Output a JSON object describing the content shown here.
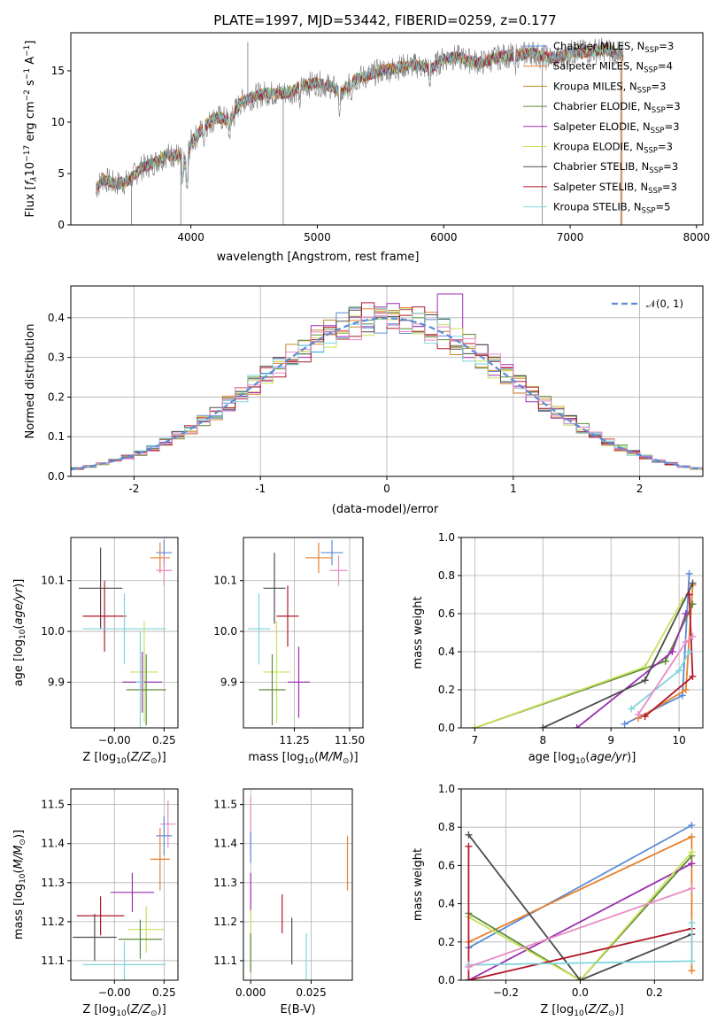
{
  "figure_title": "PLATE=1997, MJD=53442, FIBERID=0259, z=0.177",
  "colors": {
    "Chabrier MILES": "#5b8bd8",
    "Salpeter MILES": "#e87f2a",
    "Kroupa MILES": "#c48a2a",
    "Chabrier ELODIE": "#5c8a3a",
    "Salpeter ELODIE": "#9b2fb0",
    "Kroupa ELODIE": "#c9e05a",
    "Chabrier STELIB": "#4d4d4d",
    "Salpeter STELIB": "#b2182b",
    "Kroupa STELIB": "#7fd6dc",
    "gaussian": "#5b8bd8",
    "extra_pink": "#e88bc4"
  },
  "chart_data": [
    {
      "id": "spectrum",
      "type": "line",
      "xlabel": "wavelength [Angstrom, rest frame]",
      "ylabel": "Flux [f_λ10^-17 erg cm^-2 s^-1 A^-1]",
      "ylabel_parts": {
        "a": "Flux [",
        "b": "f",
        "c": "λ",
        "d": "10",
        "e": "−17",
        "f": " erg cm",
        "g": "−2",
        "h": " s",
        "i": "−1",
        "j": " A",
        "k": "−1",
        "l": "]"
      },
      "xlim": [
        3050,
        8050
      ],
      "ylim": [
        0,
        18.7
      ],
      "xticks": [
        4000,
        5000,
        6000,
        7000,
        8000
      ],
      "yticks": [
        0,
        5,
        10,
        15
      ],
      "grid": false,
      "legend_placement": "right",
      "legend": [
        {
          "name": "Chabrier MILES",
          "n": "3"
        },
        {
          "name": "Salpeter MILES",
          "n": "4"
        },
        {
          "name": "Kroupa MILES",
          "n": "3"
        },
        {
          "name": "Chabrier ELODIE",
          "n": "3"
        },
        {
          "name": "Salpeter ELODIE",
          "n": "3"
        },
        {
          "name": "Kroupa ELODIE",
          "n": "3"
        },
        {
          "name": "Chabrier STELIB",
          "n": "3"
        },
        {
          "name": "Salpeter STELIB",
          "n": "3"
        },
        {
          "name": "Kroupa STELIB",
          "n": "5"
        }
      ],
      "legend_suffix": {
        "n": "N",
        "sub": "SSP",
        "eq": "="
      },
      "continuum": [
        [
          3250,
          3.5
        ],
        [
          3300,
          4.5
        ],
        [
          3400,
          4.0
        ],
        [
          3500,
          4.2
        ],
        [
          3600,
          5.5
        ],
        [
          3700,
          6.0
        ],
        [
          3800,
          6.8
        ],
        [
          3900,
          6.8
        ],
        [
          3950,
          5.8
        ],
        [
          4000,
          8.0
        ],
        [
          4100,
          9.5
        ],
        [
          4200,
          10.5
        ],
        [
          4300,
          10.2
        ],
        [
          4400,
          12.0
        ],
        [
          4500,
          12.5
        ],
        [
          4600,
          12.8
        ],
        [
          4700,
          12.8
        ],
        [
          4800,
          13.0
        ],
        [
          4900,
          13.6
        ],
        [
          5000,
          13.8
        ],
        [
          5100,
          13.5
        ],
        [
          5200,
          12.8
        ],
        [
          5300,
          14.2
        ],
        [
          5400,
          14.5
        ],
        [
          5500,
          15.0
        ],
        [
          5600,
          15.2
        ],
        [
          5700,
          15.5
        ],
        [
          5800,
          15.5
        ],
        [
          5900,
          15.2
        ],
        [
          6000,
          16.2
        ],
        [
          6100,
          16.3
        ],
        [
          6200,
          16.0
        ],
        [
          6300,
          15.8
        ],
        [
          6400,
          16.2
        ],
        [
          6500,
          16.5
        ],
        [
          6600,
          16.5
        ],
        [
          6700,
          16.8
        ],
        [
          6800,
          16.3
        ],
        [
          6900,
          16.2
        ],
        [
          7000,
          16.8
        ],
        [
          7100,
          16.8
        ],
        [
          7200,
          17.0
        ],
        [
          7300,
          17.0
        ],
        [
          7400,
          16.5
        ]
      ],
      "absorption": [
        [
          3934,
          3.5
        ],
        [
          3969,
          3.0
        ],
        [
          4102,
          7.5
        ],
        [
          4304,
          8.0
        ],
        [
          4340,
          9.5
        ],
        [
          4861,
          11.0
        ],
        [
          5175,
          10.5
        ],
        [
          5270,
          12.0
        ],
        [
          5890,
          13.0
        ],
        [
          6563,
          14.5
        ]
      ],
      "spikes": [
        [
          3530,
          0
        ],
        [
          3920,
          0
        ],
        [
          4450,
          17.8
        ],
        [
          4730,
          0
        ],
        [
          6780,
          0
        ],
        [
          7400,
          0
        ]
      ]
    },
    {
      "id": "residual_histogram",
      "type": "step",
      "xlabel": "(data-model)/error",
      "ylabel": "Normed distribution",
      "xlim": [
        -2.5,
        2.5
      ],
      "ylim": [
        0,
        0.48
      ],
      "xticks": [
        -2,
        -1,
        0,
        1,
        2
      ],
      "ytick_labels": [
        "0.0",
        "0.1",
        "0.2",
        "0.3",
        "0.4"
      ],
      "yticks": [
        0,
        0.1,
        0.2,
        0.3,
        0.4
      ],
      "grid": true,
      "legend_placement": "top-right",
      "legend_label": "𝒩(0, 1)",
      "bin_width": 0.1,
      "gaussian": {
        "mean": 0,
        "sigma": 1
      }
    },
    {
      "id": "age_vs_Z",
      "type": "errorbar",
      "xlabel": "Z [log10(Z/Z⊙)]",
      "ylabel": "age [log10(age/yr)]",
      "xlim": [
        -0.22,
        0.32
      ],
      "ylim": [
        9.81,
        10.185
      ],
      "xticks": [
        -0.0,
        0.25
      ],
      "xtick_labels": [
        "−0.00",
        "0.25"
      ],
      "yticks": [
        9.9,
        10.0,
        10.1
      ],
      "ytick_labels": [
        "9.9",
        "10.0",
        "10.1"
      ],
      "grid": true,
      "points": [
        {
          "series": "Chabrier MILES",
          "x": 0.25,
          "y": 10.155,
          "xerr": 0.04,
          "yerr": 0.025
        },
        {
          "series": "Salpeter MILES",
          "x": 0.23,
          "y": 10.145,
          "xerr": 0.05,
          "yerr": 0.03
        },
        {
          "series": "extra_pink",
          "x": 0.25,
          "y": 10.12,
          "xerr": 0.04,
          "yerr": 0.03
        },
        {
          "series": "Chabrier STELIB",
          "x": -0.07,
          "y": 10.085,
          "xerr": 0.11,
          "yerr": 0.08
        },
        {
          "series": "Salpeter STELIB",
          "x": -0.05,
          "y": 10.03,
          "xerr": 0.11,
          "yerr": 0.07
        },
        {
          "series": "Kroupa STELIB",
          "x": 0.05,
          "y": 10.005,
          "xerr": 0.21,
          "yerr": 0.07
        },
        {
          "series": "Kroupa ELODIE",
          "x": 0.15,
          "y": 9.92,
          "xerr": 0.07,
          "yerr": 0.1
        },
        {
          "series": "Salpeter ELODIE",
          "x": 0.14,
          "y": 9.9,
          "xerr": 0.1,
          "yerr": 0.06
        },
        {
          "series": "Chabrier ELODIE",
          "x": 0.16,
          "y": 9.885,
          "xerr": 0.1,
          "yerr": 0.07
        },
        {
          "series": "Kroupa STELIB",
          "x": 0.13,
          "y": 9.9,
          "xerr": 0.02,
          "yerr": 0.1
        }
      ]
    },
    {
      "id": "age_vs_mass",
      "type": "errorbar",
      "xlabel": "mass [log10(M/M⊙)]",
      "ylabel": "",
      "xlim": [
        11.02,
        11.56
      ],
      "ylim": [
        9.81,
        10.185
      ],
      "xticks": [
        11.25,
        11.5
      ],
      "xtick_labels": [
        "11.25",
        "11.50"
      ],
      "yticks": [
        9.9,
        10.0,
        10.1
      ],
      "ytick_labels": [
        "9.9",
        "10.0",
        "10.1"
      ],
      "grid": true,
      "points": [
        {
          "series": "Chabrier MILES",
          "x": 11.42,
          "y": 10.155,
          "xerr": 0.05,
          "yerr": 0.025
        },
        {
          "series": "Salpeter MILES",
          "x": 11.36,
          "y": 10.145,
          "xerr": 0.06,
          "yerr": 0.03
        },
        {
          "series": "extra_pink",
          "x": 11.45,
          "y": 10.12,
          "xerr": 0.04,
          "yerr": 0.03
        },
        {
          "series": "Chabrier STELIB",
          "x": 11.16,
          "y": 10.085,
          "xerr": 0.05,
          "yerr": 0.07
        },
        {
          "series": "Salpeter STELIB",
          "x": 11.22,
          "y": 10.03,
          "xerr": 0.05,
          "yerr": 0.06
        },
        {
          "series": "Kroupa STELIB",
          "x": 11.09,
          "y": 10.005,
          "xerr": 0.05,
          "yerr": 0.07
        },
        {
          "series": "Kroupa ELODIE",
          "x": 11.17,
          "y": 9.92,
          "xerr": 0.06,
          "yerr": 0.1
        },
        {
          "series": "Salpeter ELODIE",
          "x": 11.27,
          "y": 9.9,
          "xerr": 0.05,
          "yerr": 0.07
        },
        {
          "series": "Chabrier ELODIE",
          "x": 11.15,
          "y": 9.885,
          "xerr": 0.06,
          "yerr": 0.07
        }
      ]
    },
    {
      "id": "mass_weight_vs_age",
      "type": "line",
      "xlabel": "age [log10(age/yr)]",
      "ylabel": "mass weight",
      "xlim": [
        6.8,
        10.35
      ],
      "ylim": [
        0,
        1.0
      ],
      "xticks": [
        7,
        8,
        9,
        10
      ],
      "yticks": [
        0,
        0.2,
        0.4,
        0.6,
        0.8,
        1.0
      ],
      "ytick_labels": [
        "0.0",
        "0.2",
        "0.4",
        "0.6",
        "0.8",
        "1.0"
      ],
      "grid": true,
      "series": [
        {
          "name": "Chabrier MILES",
          "x": [
            9.2,
            10.05,
            10.15
          ],
          "y": [
            0.02,
            0.17,
            0.81
          ]
        },
        {
          "name": "Salpeter MILES",
          "x": [
            9.4,
            10.1,
            10.2
          ],
          "y": [
            0.05,
            0.2,
            0.75
          ]
        },
        {
          "name": "Chabrier ELODIE",
          "x": [
            7.0,
            9.8,
            10.2
          ],
          "y": [
            0.0,
            0.35,
            0.65
          ]
        },
        {
          "name": "Salpeter ELODIE",
          "x": [
            8.5,
            9.9,
            10.1
          ],
          "y": [
            0.0,
            0.4,
            0.6
          ]
        },
        {
          "name": "Kroupa ELODIE",
          "x": [
            7.0,
            9.5,
            10.05
          ],
          "y": [
            0.0,
            0.32,
            0.67
          ]
        },
        {
          "name": "Chabrier STELIB",
          "x": [
            8.0,
            9.5,
            10.2
          ],
          "y": [
            0.0,
            0.25,
            0.76
          ]
        },
        {
          "name": "Salpeter STELIB",
          "x": [
            9.5,
            10.2,
            10.15
          ],
          "y": [
            0.06,
            0.27,
            0.7
          ]
        },
        {
          "name": "Kroupa STELIB",
          "x": [
            9.3,
            10.0,
            10.15
          ],
          "y": [
            0.1,
            0.3,
            0.4
          ]
        },
        {
          "name": "extra_pink",
          "x": [
            9.4,
            10.1,
            10.2
          ],
          "y": [
            0.07,
            0.45,
            0.48
          ]
        }
      ]
    },
    {
      "id": "mass_vs_Z",
      "type": "errorbar",
      "xlabel": "Z [log10(Z/Z⊙)]",
      "ylabel": "mass [log10(M/M⊙)]",
      "xlim": [
        -0.22,
        0.32
      ],
      "ylim": [
        11.05,
        11.54
      ],
      "xticks": [
        -0.0,
        0.25
      ],
      "xtick_labels": [
        "−0.00",
        "0.25"
      ],
      "yticks": [
        11.1,
        11.2,
        11.3,
        11.4,
        11.5
      ],
      "ytick_labels": [
        "11.1",
        "11.2",
        "11.3",
        "11.4",
        "11.5"
      ],
      "grid": true,
      "points": [
        {
          "series": "extra_pink",
          "x": 0.27,
          "y": 11.45,
          "xerr": 0.04,
          "yerr": 0.06
        },
        {
          "series": "Chabrier MILES",
          "x": 0.25,
          "y": 11.42,
          "xerr": 0.04,
          "yerr": 0.05
        },
        {
          "series": "Salpeter MILES",
          "x": 0.23,
          "y": 11.36,
          "xerr": 0.05,
          "yerr": 0.08
        },
        {
          "series": "Salpeter ELODIE",
          "x": 0.09,
          "y": 11.275,
          "xerr": 0.11,
          "yerr": 0.05
        },
        {
          "series": "Salpeter STELIB",
          "x": -0.07,
          "y": 11.215,
          "xerr": 0.12,
          "yerr": 0.05
        },
        {
          "series": "Kroupa ELODIE",
          "x": 0.16,
          "y": 11.18,
          "xerr": 0.09,
          "yerr": 0.06
        },
        {
          "series": "Chabrier STELIB",
          "x": -0.1,
          "y": 11.16,
          "xerr": 0.11,
          "yerr": 0.06
        },
        {
          "series": "Chabrier ELODIE",
          "x": 0.13,
          "y": 11.155,
          "xerr": 0.11,
          "yerr": 0.05
        },
        {
          "series": "Kroupa STELIB",
          "x": 0.05,
          "y": 11.09,
          "xerr": 0.21,
          "yerr": 0.06
        }
      ]
    },
    {
      "id": "mass_vs_EBV",
      "type": "errorbar",
      "xlabel": "E(B-V)",
      "ylabel": "",
      "xlim": [
        -0.003,
        0.042
      ],
      "ylim": [
        11.05,
        11.54
      ],
      "xticks": [
        0.0,
        0.025
      ],
      "xtick_labels": [
        "0.000",
        "0.025"
      ],
      "yticks": [
        11.1,
        11.2,
        11.3,
        11.4,
        11.5
      ],
      "ytick_labels": [
        "11.1",
        "11.2",
        "11.3",
        "11.4",
        "11.5"
      ],
      "grid": true,
      "points": [
        {
          "series": "extra_pink",
          "x": 0.0,
          "y": 11.45,
          "xerr": 0,
          "yerr": 0.07
        },
        {
          "series": "Chabrier MILES",
          "x": 0.0,
          "y": 11.39,
          "xerr": 0,
          "yerr": 0.04
        },
        {
          "series": "Salpeter MILES",
          "x": 0.04,
          "y": 11.35,
          "xerr": 0,
          "yerr": 0.07
        },
        {
          "series": "Salpeter ELODIE",
          "x": 0.0,
          "y": 11.275,
          "xerr": 0,
          "yerr": 0.05
        },
        {
          "series": "Salpeter STELIB",
          "x": 0.013,
          "y": 11.22,
          "xerr": 0,
          "yerr": 0.05
        },
        {
          "series": "Kroupa ELODIE",
          "x": 0.0,
          "y": 11.16,
          "xerr": 0,
          "yerr": 0.07
        },
        {
          "series": "Chabrier STELIB",
          "x": 0.017,
          "y": 11.15,
          "xerr": 0,
          "yerr": 0.06
        },
        {
          "series": "Kroupa STELIB",
          "x": 0.023,
          "y": 11.11,
          "xerr": 0,
          "yerr": 0.06
        },
        {
          "series": "Chabrier ELODIE",
          "x": 0.0,
          "y": 11.12,
          "xerr": 0,
          "yerr": 0.05
        }
      ]
    },
    {
      "id": "mass_weight_vs_Z",
      "type": "line",
      "xlabel": "Z [log10(Z/Z⊙)]",
      "ylabel": "mass weight",
      "xlim": [
        -0.32,
        0.33
      ],
      "ylim": [
        0,
        1.0
      ],
      "xticks": [
        -0.2,
        0.0,
        0.2
      ],
      "xtick_labels": [
        "−0.2",
        "0.0",
        "0.2"
      ],
      "yticks": [
        0,
        0.2,
        0.4,
        0.6,
        0.8,
        1.0
      ],
      "ytick_labels": [
        "0.0",
        "0.2",
        "0.4",
        "0.6",
        "0.8",
        "1.0"
      ],
      "grid": true,
      "series": [
        {
          "name": "Chabrier MILES",
          "x": [
            -0.3,
            0.3
          ],
          "y": [
            0.17,
            0.81
          ]
        },
        {
          "name": "Salpeter MILES",
          "x": [
            -0.3,
            0.3,
            0.3
          ],
          "y": [
            0.2,
            0.75,
            0.05
          ]
        },
        {
          "name": "Chabrier ELODIE",
          "x": [
            -0.3,
            0.0,
            0.3
          ],
          "y": [
            0.35,
            0.0,
            0.65
          ]
        },
        {
          "name": "Salpeter ELODIE",
          "x": [
            -0.3,
            0.3
          ],
          "y": [
            0.0,
            0.61
          ]
        },
        {
          "name": "Kroupa ELODIE",
          "x": [
            -0.3,
            0.0,
            0.3
          ],
          "y": [
            0.33,
            0.0,
            0.67
          ]
        },
        {
          "name": "Chabrier STELIB",
          "x": [
            -0.3,
            0.0,
            0.3
          ],
          "y": [
            0.76,
            0.0,
            0.24
          ]
        },
        {
          "name": "Salpeter STELIB",
          "x": [
            -0.3,
            -0.3,
            0.3
          ],
          "y": [
            0.7,
            0.0,
            0.27
          ]
        },
        {
          "name": "Kroupa STELIB",
          "x": [
            -0.3,
            0.3,
            0.3
          ],
          "y": [
            0.08,
            0.1,
            0.3
          ]
        },
        {
          "name": "extra_pink",
          "x": [
            -0.3,
            0.3
          ],
          "y": [
            0.07,
            0.48
          ]
        }
      ]
    }
  ]
}
